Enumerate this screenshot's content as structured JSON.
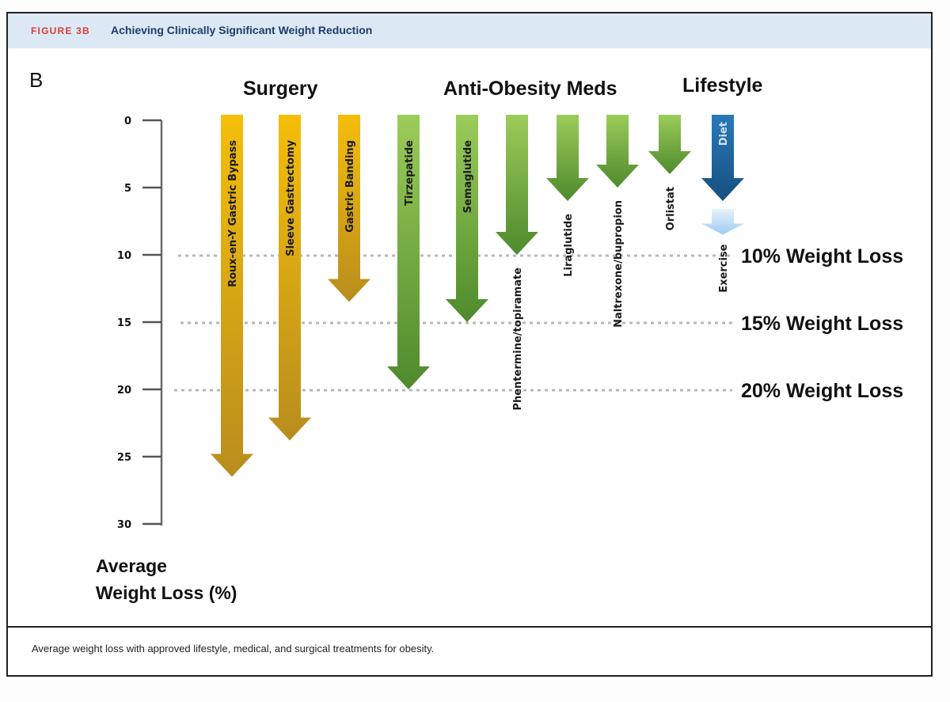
{
  "figure": {
    "label": "FIGURE 3B",
    "title": "Achieving Clinically Significant Weight Reduction",
    "caption": "Average weight loss with approved lifestyle, medical, and surgical treatments for obesity."
  },
  "chart_data": {
    "type": "bar",
    "orientation": "downward-arrows",
    "panel_letter": "B",
    "title": "Achieving Clinically Significant Weight Reduction",
    "ylabel_line1": "Average",
    "ylabel_line2": "Weight Loss (%)",
    "ylim": [
      0,
      30
    ],
    "yticks": [
      0,
      5,
      10,
      15,
      20,
      25,
      30
    ],
    "y_inverted": true,
    "groups": [
      {
        "name": "Surgery",
        "color_top": "#f5be0a",
        "color_bottom": "#b88d1e"
      },
      {
        "name": "Anti-Obesity Meds",
        "color_top": "#9ccc5a",
        "color_bottom": "#4e8a2c"
      },
      {
        "name": "Lifestyle",
        "color_top": "#2a78b8",
        "color_bottom": "#16507f"
      }
    ],
    "categories": [
      "Roux-en-Y Gastric Bypass",
      "Sleeve Gastrectomy",
      "Gastric Banding",
      "Tirzepatide",
      "Semaglutide",
      "Phentermine/topiramate",
      "Liraglutide",
      "Naltrexone/bupropion",
      "Orlistat",
      "Diet",
      "Exercise"
    ],
    "series": [
      {
        "name": "Roux-en-Y Gastric Bypass",
        "group": "Surgery",
        "start": 0,
        "value": 26.5,
        "label_inside": true
      },
      {
        "name": "Sleeve Gastrectomy",
        "group": "Surgery",
        "start": 0,
        "value": 23.8,
        "label_inside": true
      },
      {
        "name": "Gastric Banding",
        "group": "Surgery",
        "start": 0,
        "value": 13.5,
        "label_inside": true
      },
      {
        "name": "Tirzepatide",
        "group": "Anti-Obesity Meds",
        "start": 0,
        "value": 20,
        "label_inside": true
      },
      {
        "name": "Semaglutide",
        "group": "Anti-Obesity Meds",
        "start": 0,
        "value": 15,
        "label_inside": true
      },
      {
        "name": "Phentermine/topiramate",
        "group": "Anti-Obesity Meds",
        "start": 0,
        "value": 10,
        "label_inside": false
      },
      {
        "name": "Liraglutide",
        "group": "Anti-Obesity Meds",
        "start": 0,
        "value": 6,
        "label_inside": false
      },
      {
        "name": "Naltrexone/bupropion",
        "group": "Anti-Obesity Meds",
        "start": 0,
        "value": 5,
        "label_inside": false
      },
      {
        "name": "Orlistat",
        "group": "Anti-Obesity Meds",
        "start": 0,
        "value": 4,
        "label_inside": false
      },
      {
        "name": "Diet",
        "group": "Lifestyle",
        "start": 0,
        "value": 6,
        "label_inside": true
      },
      {
        "name": "Exercise",
        "group": "Lifestyle",
        "start": 6.6,
        "value": 8.5,
        "label_inside": false,
        "color_top": "#e6f1fb",
        "color_bottom": "#9fccf2"
      }
    ],
    "reference_lines": [
      {
        "value": 10,
        "label": "10% Weight Loss",
        "style": "dotted"
      },
      {
        "value": 15,
        "label": "15% Weight Loss",
        "style": "dotted"
      },
      {
        "value": 20,
        "label": "20% Weight Loss",
        "style": "dotted"
      }
    ],
    "grid": false,
    "legend": "none"
  }
}
